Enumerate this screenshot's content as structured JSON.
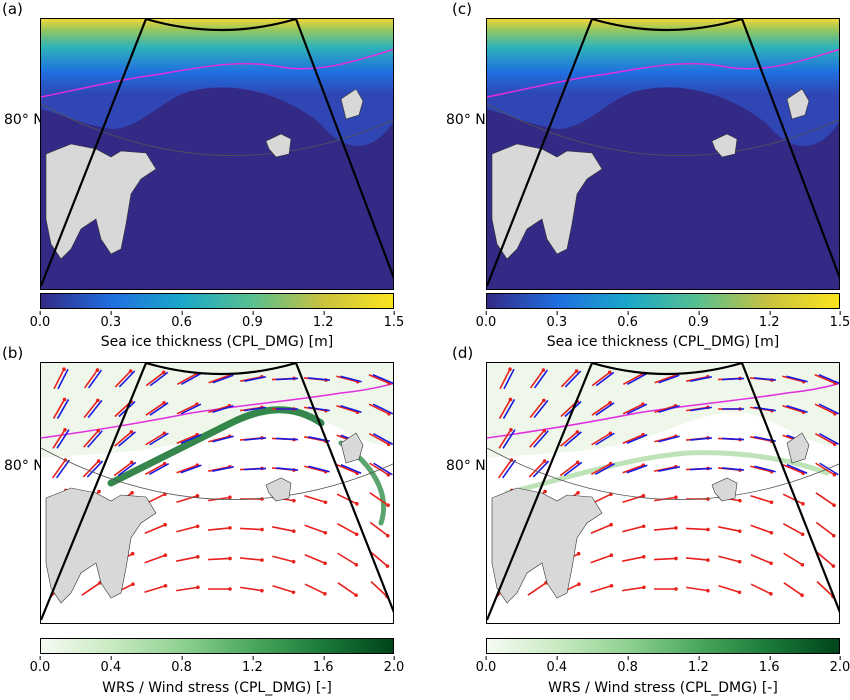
{
  "panels": [
    {
      "id": "a",
      "label": "(a)",
      "lat_label": "80° N",
      "kind": "ice"
    },
    {
      "id": "c",
      "label": "(c)",
      "lat_label": "80° N",
      "kind": "ice"
    },
    {
      "id": "b",
      "label": "(b)",
      "lat_label": "80° N",
      "kind": "wrs"
    },
    {
      "id": "d",
      "label": "(d)",
      "lat_label": "80° N",
      "kind": "wrs"
    }
  ],
  "colorbars": {
    "ice": {
      "label": "Sea ice thickness (CPL_DMG) [m]",
      "ticks": [
        "0.0",
        "0.3",
        "0.6",
        "0.9",
        "1.2",
        "1.5"
      ],
      "range": [
        0,
        1.5
      ],
      "colors": [
        "#332a86",
        "#1f6fe0",
        "#1aa7c9",
        "#58c08f",
        "#c9c13f",
        "#fbe51f"
      ]
    },
    "wrs": {
      "label": "WRS / Wind stress (CPL_DMG) [-]",
      "ticks": [
        "0.0",
        "0.4",
        "0.8",
        "1.2",
        "1.6",
        "2.0"
      ],
      "range": [
        0,
        2.0
      ],
      "colors": [
        "#f6fbf3",
        "#c9eac2",
        "#8fd191",
        "#4aa85c",
        "#1a7a3a",
        "#00441b"
      ]
    }
  },
  "colors": {
    "ocean_thin_ice": "#332a86",
    "land": "#d8d8d8",
    "ice_edge_contour": "#e02ee0",
    "arrow_model": "#e8201b",
    "arrow_obs": "#1a1ae0",
    "domain_boundary": "#000000"
  }
}
